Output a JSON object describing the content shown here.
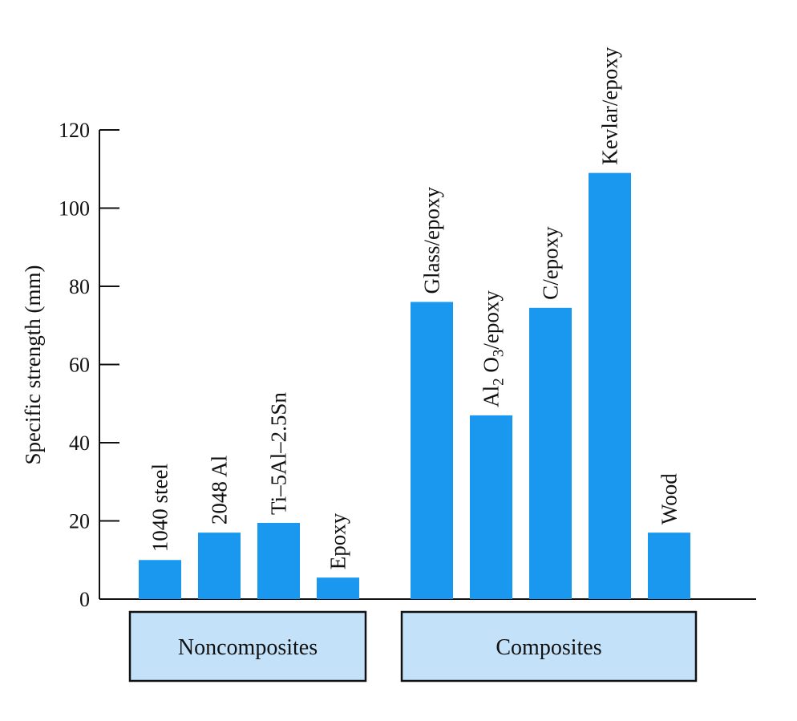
{
  "chart_data": {
    "type": "bar",
    "title": "",
    "xlabel": "",
    "ylabel": "Specific strength (mm)",
    "ylim": [
      0,
      120
    ],
    "yticks": [
      0,
      20,
      40,
      60,
      80,
      100,
      120
    ],
    "grid": false,
    "legend": "none",
    "bar_color": "#1a98f0",
    "group_box_color": "#c3e2fa",
    "categories": [
      "1040 steel",
      "2048 Al",
      "Ti–5Al–2.5Sn",
      "Epoxy",
      "Glass/epoxy",
      "Al2 O3/epoxy",
      "C/epoxy",
      "Kevlar/epoxy",
      "Wood"
    ],
    "values": [
      10,
      17,
      19.5,
      5.5,
      76,
      47,
      74.5,
      109,
      17
    ],
    "groups": [
      {
        "label": "Noncomposites",
        "categories": [
          "1040 steel",
          "2048 Al",
          "Ti–5Al–2.5Sn",
          "Epoxy"
        ]
      },
      {
        "label": "Composites",
        "categories": [
          "Glass/epoxy",
          "Al2 O3/epoxy",
          "C/epoxy",
          "Kevlar/epoxy",
          "Wood"
        ]
      }
    ]
  }
}
